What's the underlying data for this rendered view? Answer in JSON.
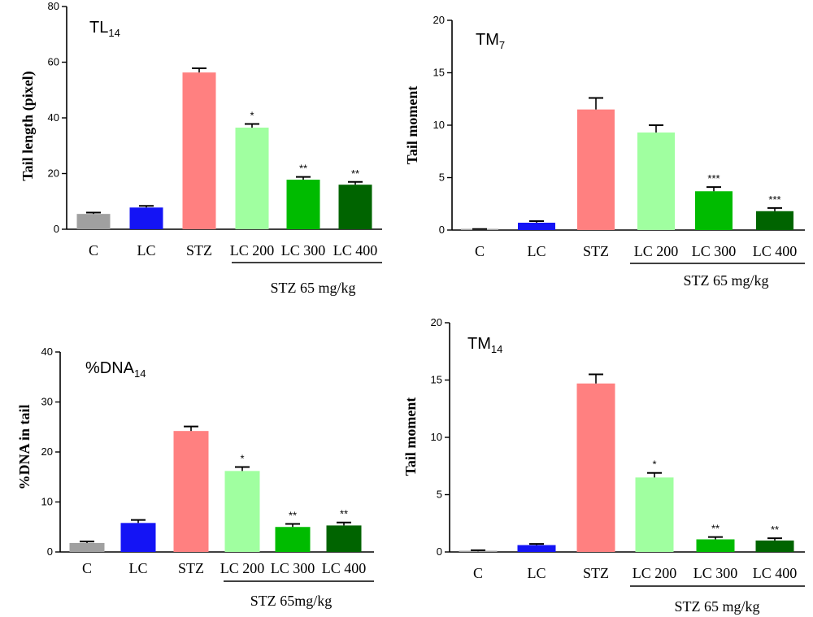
{
  "chart_data": [
    {
      "type": "bar",
      "title_main": "TL",
      "title_sub": "14",
      "ylabel": "Tail length (pixel)",
      "ylim": [
        0,
        80
      ],
      "yticks": [
        0,
        20,
        40,
        60,
        80
      ],
      "categories": [
        "C",
        "LC",
        "STZ",
        "LC 200",
        "LC 300",
        "LC 400"
      ],
      "values": [
        5.5,
        7.8,
        56.3,
        36.5,
        17.8,
        16.0
      ],
      "errors": [
        0.5,
        0.6,
        1.5,
        1.3,
        1.0,
        1.0
      ],
      "significance": [
        "",
        "",
        "",
        "*",
        "**",
        "**"
      ],
      "group_label": "STZ 65 mg/kg",
      "group_span": [
        3,
        5
      ]
    },
    {
      "type": "bar",
      "title_main": "TM",
      "title_sub": "7",
      "ylabel": "Tail moment",
      "ylim": [
        0,
        20
      ],
      "yticks": [
        0,
        5,
        10,
        15,
        20
      ],
      "categories": [
        "C",
        "LC",
        "STZ",
        "LC 200",
        "LC 300",
        "LC 400"
      ],
      "values": [
        0.05,
        0.7,
        11.5,
        9.3,
        3.7,
        1.8
      ],
      "errors": [
        0.05,
        0.15,
        1.1,
        0.7,
        0.4,
        0.3
      ],
      "significance": [
        "",
        "",
        "",
        "",
        "***",
        "***"
      ],
      "group_label": "STZ 65 mg/kg",
      "group_span": [
        3,
        5
      ]
    },
    {
      "type": "bar",
      "title_main": "%DNA",
      "title_sub": "14",
      "ylabel": "%DNA  in  tail",
      "ylim": [
        0,
        40
      ],
      "yticks": [
        0,
        10,
        20,
        30,
        40
      ],
      "categories": [
        "C",
        "LC",
        "STZ",
        "LC 200",
        "LC 300",
        "LC 400"
      ],
      "values": [
        1.8,
        5.8,
        24.2,
        16.2,
        5.0,
        5.3
      ],
      "errors": [
        0.3,
        0.6,
        0.9,
        0.8,
        0.6,
        0.6
      ],
      "significance": [
        "",
        "",
        "",
        "*",
        "**",
        "**"
      ],
      "group_label": "STZ 65mg/kg",
      "group_span": [
        3,
        5
      ]
    },
    {
      "type": "bar",
      "title_main": "TM",
      "title_sub": "14",
      "ylabel": "Tail moment",
      "ylim": [
        0,
        20
      ],
      "yticks": [
        0,
        5,
        10,
        15,
        20
      ],
      "categories": [
        "C",
        "LC",
        "STZ",
        "LC 200",
        "LC 300",
        "LC 400"
      ],
      "values": [
        0.05,
        0.6,
        14.7,
        6.5,
        1.1,
        1.0
      ],
      "errors": [
        0.1,
        0.1,
        0.8,
        0.4,
        0.2,
        0.2
      ],
      "significance": [
        "",
        "",
        "",
        "*",
        "**",
        "**"
      ],
      "group_label": "STZ 65 mg/kg",
      "group_span": [
        3,
        5
      ]
    }
  ],
  "colors": [
    "#a0a0a0",
    "#1414f5",
    "#ff8080",
    "#a0ffa0",
    "#00bb00",
    "#006400"
  ]
}
